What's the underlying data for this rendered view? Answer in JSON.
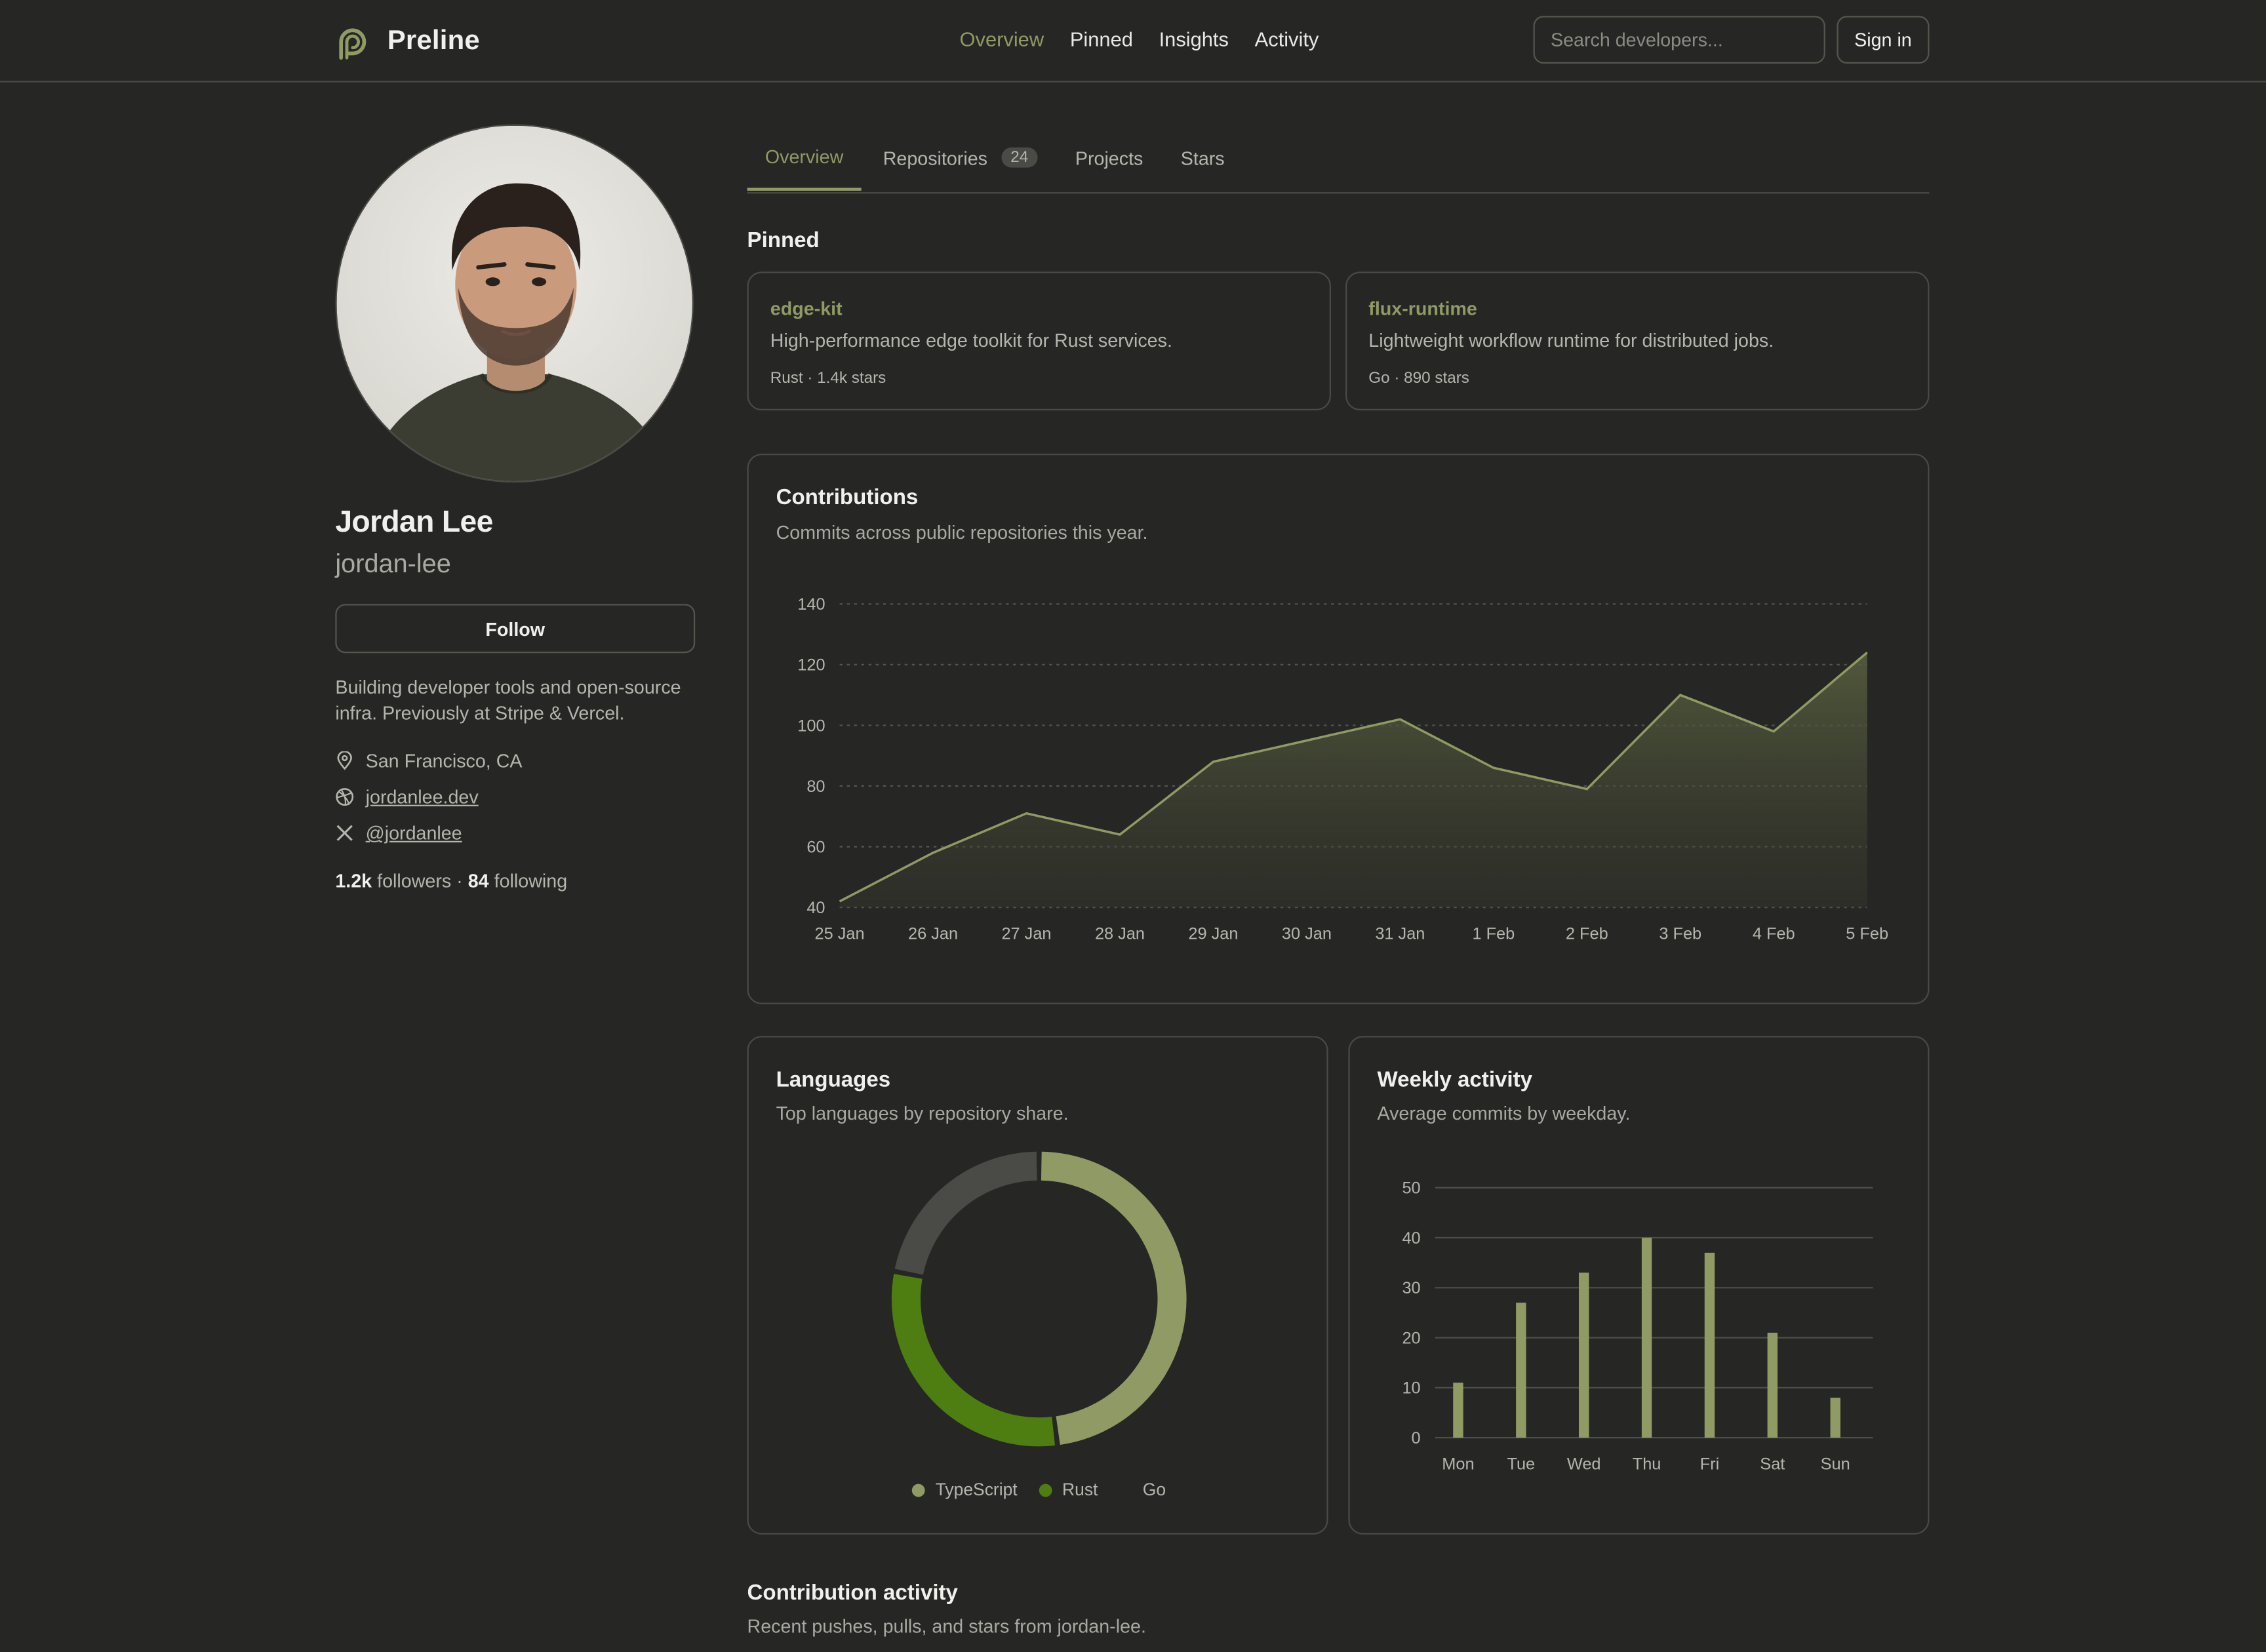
{
  "brand": {
    "name": "Preline"
  },
  "nav": [
    "Overview",
    "Pinned",
    "Insights",
    "Activity"
  ],
  "search": {
    "placeholder": "Search developers..."
  },
  "signin": "Sign in",
  "profile": {
    "name": "Jordan Lee",
    "handle": "jordan-lee",
    "follow": "Follow",
    "bio": "Building developer tools and open-source infra. Previously at Stripe & Vercel.",
    "location": "San Francisco, CA",
    "website": "jordanlee.dev",
    "twitter": "@jordanlee",
    "followers": "1.2k",
    "followers_label": "followers",
    "sep": "·",
    "following": "84",
    "following_label": "following"
  },
  "tabs": [
    {
      "label": "Overview"
    },
    {
      "label": "Repositories",
      "count": "24"
    },
    {
      "label": "Projects"
    },
    {
      "label": "Stars"
    }
  ],
  "pinned": {
    "title": "Pinned",
    "repos": [
      {
        "name": "edge-kit",
        "desc": "High-performance edge toolkit for Rust services.",
        "meta": "Rust · 1.4k stars"
      },
      {
        "name": "flux-runtime",
        "desc": "Lightweight workflow runtime for distributed jobs.",
        "meta": "Go · 890 stars"
      }
    ]
  },
  "contributions": {
    "title": "Contributions",
    "subtitle": "Commits across public repositories this year."
  },
  "languages": {
    "title": "Languages",
    "subtitle": "Top languages by repository share."
  },
  "weekly": {
    "title": "Weekly activity",
    "subtitle": "Average commits by weekday."
  },
  "activity": {
    "title": "Contribution activity",
    "subtitle": "Recent pushes, pulls, and stars from jordan-lee."
  },
  "colors": {
    "accent": "#8f9a64",
    "rust": "#4e7d12",
    "go": "#4a4a46",
    "background": "#262624"
  },
  "chart_data": [
    {
      "type": "area",
      "x": [
        "25 Jan",
        "26 Jan",
        "27 Jan",
        "28 Jan",
        "29 Jan",
        "30 Jan",
        "31 Jan",
        "1 Feb",
        "2 Feb",
        "3 Feb",
        "4 Feb",
        "5 Feb"
      ],
      "values": [
        42,
        58,
        71,
        64,
        88,
        95,
        102,
        86,
        79,
        110,
        98,
        124
      ],
      "ylim": [
        40,
        140
      ],
      "yticks": [
        40,
        60,
        80,
        100,
        120,
        140
      ],
      "grid": true
    },
    {
      "type": "pie",
      "donut": true,
      "series": [
        {
          "name": "TypeScript",
          "value": 48,
          "color": "#8f9a64"
        },
        {
          "name": "Rust",
          "value": 30,
          "color": "#4e7d12"
        },
        {
          "name": "Go",
          "value": 22,
          "color": "#4a4a46"
        }
      ],
      "legend": "bottom"
    },
    {
      "type": "bar",
      "categories": [
        "Mon",
        "Tue",
        "Wed",
        "Thu",
        "Fri",
        "Sat",
        "Sun"
      ],
      "values": [
        11,
        27,
        33,
        40,
        37,
        21,
        8
      ],
      "ylim": [
        0,
        50
      ],
      "yticks": [
        0,
        10,
        20,
        30,
        40,
        50
      ],
      "grid": true
    }
  ]
}
